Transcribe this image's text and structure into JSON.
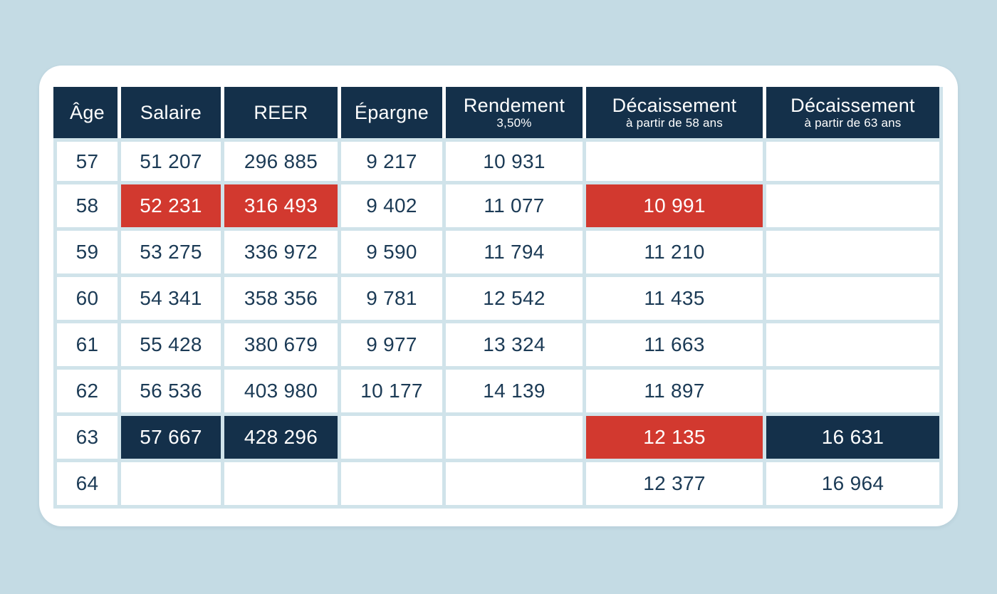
{
  "colors": {
    "page_background": "#c4dbe4",
    "card_background": "#ffffff",
    "header_background": "#14304a",
    "highlight_red": "#d2392f",
    "highlight_navy": "#14304a",
    "grid_line": "#d0e3ea",
    "body_text": "#1b3a55",
    "header_text": "#ffffff"
  },
  "table": {
    "columns": [
      {
        "id": "age",
        "label": "Âge",
        "sublabel": ""
      },
      {
        "id": "salaire",
        "label": "Salaire",
        "sublabel": ""
      },
      {
        "id": "reer",
        "label": "REER",
        "sublabel": ""
      },
      {
        "id": "epargne",
        "label": "Épargne",
        "sublabel": ""
      },
      {
        "id": "rendement",
        "label": "Rendement",
        "sublabel": "3,50%"
      },
      {
        "id": "decaissement-58",
        "label": "Décaissement",
        "sublabel": "à partir de 58 ans"
      },
      {
        "id": "decaissement-63",
        "label": "Décaissement",
        "sublabel": "à partir de 63 ans"
      }
    ],
    "rows": [
      {
        "cells": [
          "57",
          "51 207",
          "296 885",
          "9 217",
          "10 931",
          "",
          ""
        ]
      },
      {
        "cells": [
          "58",
          "52 231",
          "316 493",
          "9 402",
          "11 077",
          "10 991",
          ""
        ]
      },
      {
        "cells": [
          "59",
          "53 275",
          "336 972",
          "9 590",
          "11 794",
          "11 210",
          ""
        ]
      },
      {
        "cells": [
          "60",
          "54 341",
          "358 356",
          "9 781",
          "12 542",
          "11 435",
          ""
        ]
      },
      {
        "cells": [
          "61",
          "55 428",
          "380 679",
          "9 977",
          "13 324",
          "11 663",
          ""
        ]
      },
      {
        "cells": [
          "62",
          "56 536",
          "403 980",
          "10 177",
          "14 139",
          "11 897",
          ""
        ]
      },
      {
        "cells": [
          "63",
          "57 667",
          "428 296",
          "",
          "",
          "12 135",
          "16 631"
        ]
      },
      {
        "cells": [
          "64",
          "",
          "",
          "",
          "",
          "12 377",
          "16 964"
        ]
      }
    ],
    "highlights": [
      {
        "row": 1,
        "col": 1,
        "type": "red"
      },
      {
        "row": 1,
        "col": 2,
        "type": "red"
      },
      {
        "row": 1,
        "col": 5,
        "type": "red"
      },
      {
        "row": 6,
        "col": 1,
        "type": "navy"
      },
      {
        "row": 6,
        "col": 2,
        "type": "navy"
      },
      {
        "row": 6,
        "col": 5,
        "type": "red"
      },
      {
        "row": 6,
        "col": 6,
        "type": "navy"
      }
    ]
  },
  "chart_data": {
    "type": "table",
    "title": "",
    "columns": [
      "Âge",
      "Salaire",
      "REER",
      "Épargne",
      "Rendement 3,50%",
      "Décaissement à partir de 58 ans",
      "Décaissement à partir de 63 ans"
    ],
    "rows": [
      [
        57,
        51207,
        296885,
        9217,
        10931,
        null,
        null
      ],
      [
        58,
        52231,
        316493,
        9402,
        11077,
        10991,
        null
      ],
      [
        59,
        53275,
        336972,
        9590,
        11794,
        11210,
        null
      ],
      [
        60,
        54341,
        358356,
        9781,
        12542,
        11435,
        null
      ],
      [
        61,
        55428,
        380679,
        9977,
        13324,
        11663,
        null
      ],
      [
        62,
        56536,
        403980,
        10177,
        14139,
        11897,
        null
      ],
      [
        63,
        57667,
        428296,
        null,
        null,
        12135,
        16631
      ],
      [
        64,
        null,
        null,
        null,
        null,
        12377,
        16964
      ]
    ],
    "notes": "Red highlighted cells: row age 58 (Salaire 52 231, REER 316 493, Décaissement58 10 991) and age 63 (Décaissement58 12 135). Navy highlighted cells: age 63 (Salaire 57 667, REER 428 296, Décaissement63 16 631)."
  }
}
